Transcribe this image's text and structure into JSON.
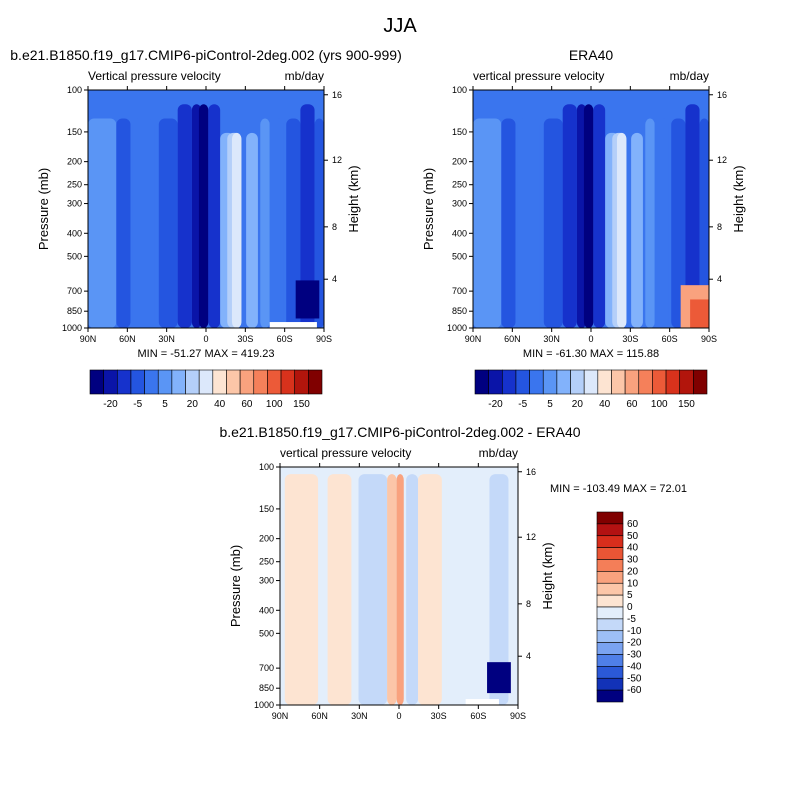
{
  "figure": {
    "title": "JJA"
  },
  "chart_data": [
    {
      "type": "heatmap",
      "title": "b.e21.B1850.f19_g17.CMIP6-piControl-2deg.002 (yrs 900-999)",
      "subtitle_left": "Vertical pressure velocity",
      "subtitle_right": "mb/day",
      "ylabel": "Pressure (mb)",
      "ylabel_right": "Height (km)",
      "x_ticks": [
        "90N",
        "60N",
        "30N",
        "0",
        "30S",
        "60S",
        "90S"
      ],
      "y_ticks": [
        "100",
        "150",
        "200",
        "250",
        "300",
        "400",
        "500",
        "700",
        "850",
        "1000"
      ],
      "y_ticks_right": [
        "16",
        "12",
        "8",
        "4"
      ],
      "stats": "MIN = -51.27  MAX = 419.23",
      "colorbar_labels": [
        "-20",
        "-5",
        "5",
        "20",
        "40",
        "60",
        "100",
        "150"
      ],
      "colorbar_orientation": "horizontal"
    },
    {
      "type": "heatmap",
      "title": "ERA40",
      "subtitle_left": "vertical pressure velocity",
      "subtitle_right": "mb/day",
      "ylabel": "Pressure (mb)",
      "ylabel_right": "Height (km)",
      "x_ticks": [
        "90N",
        "60N",
        "30N",
        "0",
        "30S",
        "60S",
        "90S"
      ],
      "y_ticks": [
        "100",
        "150",
        "200",
        "250",
        "300",
        "400",
        "500",
        "700",
        "850",
        "1000"
      ],
      "y_ticks_right": [
        "16",
        "12",
        "8",
        "4"
      ],
      "stats": "MIN = -61.30  MAX = 115.88",
      "colorbar_labels": [
        "-20",
        "-5",
        "5",
        "20",
        "40",
        "60",
        "100",
        "150"
      ],
      "colorbar_orientation": "horizontal"
    },
    {
      "type": "heatmap",
      "title": "b.e21.B1850.f19_g17.CMIP6-piControl-2deg.002 - ERA40",
      "subtitle_left": "vertical pressure velocity",
      "subtitle_right": "mb/day",
      "ylabel": "Pressure (mb)",
      "ylabel_right": "Height (km)",
      "x_ticks": [
        "90N",
        "60N",
        "30N",
        "0",
        "30S",
        "60S",
        "90S"
      ],
      "y_ticks": [
        "100",
        "150",
        "200",
        "250",
        "300",
        "400",
        "500",
        "700",
        "850",
        "1000"
      ],
      "y_ticks_right": [
        "16",
        "12",
        "8",
        "4"
      ],
      "stats": "MIN = -103.49  MAX =  72.01",
      "colorbar_labels": [
        "60",
        "50",
        "40",
        "30",
        "20",
        "10",
        "5",
        "0",
        "-5",
        "-10",
        "-20",
        "-30",
        "-40",
        "-50",
        "-60"
      ],
      "colorbar_orientation": "vertical"
    }
  ],
  "palettes": {
    "main": [
      "#000080",
      "#0a14a8",
      "#1632cc",
      "#2455e0",
      "#3a75ee",
      "#5a95f5",
      "#82b2fb",
      "#b4cff9",
      "#dce8fb",
      "#fde4d2",
      "#fcc6a8",
      "#f9a27e",
      "#f5805a",
      "#ec5a38",
      "#d8321c",
      "#b2150c",
      "#800000"
    ],
    "diff": [
      "#800000",
      "#b31212",
      "#d82e1c",
      "#ea5535",
      "#f47e58",
      "#f9a27e",
      "#fcc6a8",
      "#fde4d2",
      "#e3eefb",
      "#c4d9f9",
      "#9dbff6",
      "#7aa3f1",
      "#4f7fe8",
      "#2b59d8",
      "#1232b8",
      "#000080"
    ]
  }
}
